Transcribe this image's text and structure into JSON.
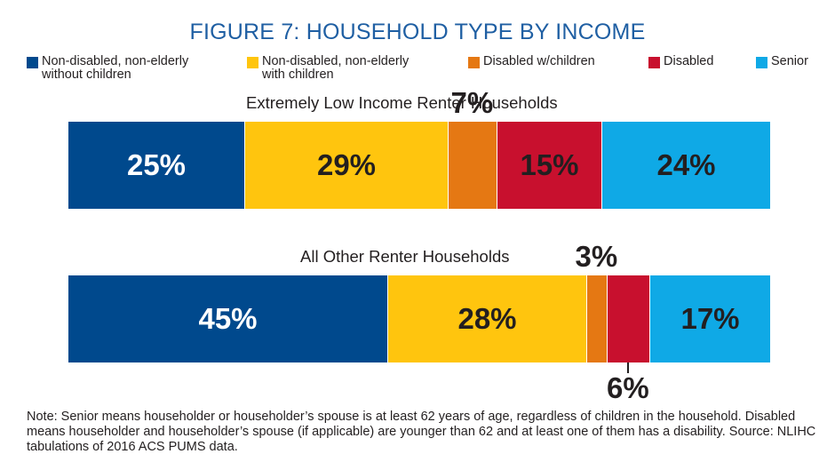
{
  "chart_data": {
    "type": "bar",
    "orientation": "horizontal-stacked-100",
    "title": "FIGURE 7: HOUSEHOLD TYPE BY INCOME",
    "legend_placement": "top",
    "series": [
      {
        "name": "Non-disabled, non-elderly without children",
        "legend_lines": [
          "Non-disabled, non-elderly",
          "without children"
        ],
        "color": "#00498d",
        "label_color": "#ffffff"
      },
      {
        "name": "Non-disabled, non-elderly with children",
        "legend_lines": [
          "Non-disabled, non-elderly",
          "with children"
        ],
        "color": "#ffc50e",
        "label_color": "#231f20"
      },
      {
        "name": "Disabled w/children",
        "legend_lines": [
          "Disabled w/children"
        ],
        "color": "#e57813",
        "label_color": "#231f20"
      },
      {
        "name": "Disabled",
        "legend_lines": [
          "Disabled"
        ],
        "color": "#c8102e",
        "label_color": "#231f20"
      },
      {
        "name": "Senior",
        "legend_lines": [
          "Senior"
        ],
        "color": "#0fa9e6",
        "label_color": "#231f20"
      }
    ],
    "groups": [
      {
        "title": "Extremely Low Income Renter Households",
        "values": [
          25,
          29,
          7,
          15,
          24
        ],
        "labels": [
          "25%",
          "29%",
          "7%",
          "15%",
          "24%"
        ]
      },
      {
        "title": "All Other Renter Households",
        "values": [
          45,
          28,
          3,
          6,
          17
        ],
        "labels": [
          "45%",
          "28%",
          "3%",
          "6%",
          "17%"
        ]
      }
    ],
    "xlim": [
      0,
      100
    ],
    "note": "Note: Senior means householder or householder’s spouse is at least 62 years of age, regardless of children in the household. Disabled means householder and householder’s spouse (if applicable) are younger than 62 and at least one of them has a disability. Source: NLIHC tabulations of 2016 ACS PUMS data."
  }
}
